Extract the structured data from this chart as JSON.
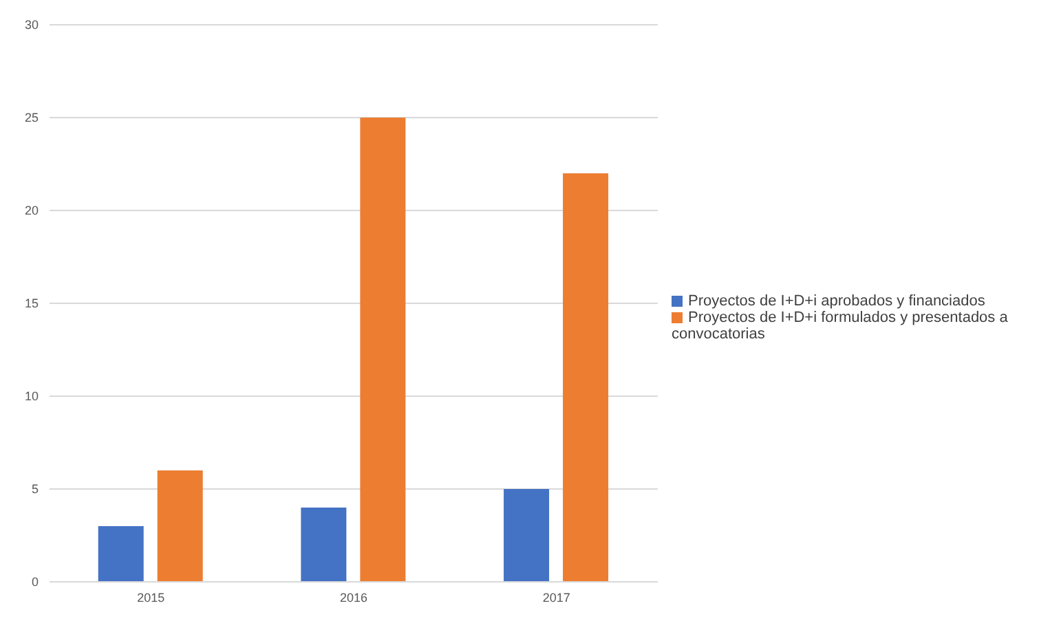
{
  "chart_data": {
    "type": "bar",
    "categories": [
      "2015",
      "2016",
      "2017"
    ],
    "series": [
      {
        "name": "Proyectos de I+D+i aprobados y financiados",
        "color": "#4472c4",
        "values": [
          3,
          4,
          5
        ]
      },
      {
        "name": "Proyectos de I+D+i formulados y presentados a convocatorias",
        "color": "#ed7d31",
        "values": [
          6,
          25,
          22
        ]
      }
    ],
    "ylim": [
      0,
      30
    ],
    "yticks": [
      0,
      5,
      10,
      15,
      20,
      25,
      30
    ],
    "grid": "y",
    "legend": "right"
  }
}
